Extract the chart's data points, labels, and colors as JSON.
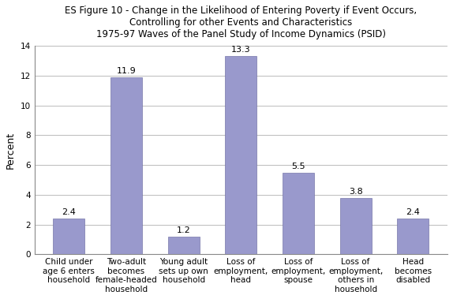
{
  "title_line1": "ES Figure 10 - Change in the Likelihood of Entering Poverty if Event Occurs,",
  "title_line2": "Controlling for other Events and Characteristics",
  "title_line3": "1975-97 Waves of the Panel Study of Income Dynamics (PSID)",
  "categories": [
    "Child under\nage 6 enters\nhousehold",
    "Two-adult\nbecomes\nfemale-headed\nhousehold",
    "Young adult\nsets up own\nhousehold",
    "Loss of\nemployment,\nhead",
    "Loss of\nemployment,\nspouse",
    "Loss of\nemployment,\nothers in\nhousehold",
    "Head\nbecomes\ndisabled"
  ],
  "values": [
    2.4,
    11.9,
    1.2,
    13.3,
    5.5,
    3.8,
    2.4
  ],
  "value_labels": [
    "2.4",
    "11.9",
    "1.2",
    "13.3",
    "5.5",
    "3.8",
    "2.4"
  ],
  "bar_color": "#9999CC",
  "bar_edge_color": "#7777AA",
  "ylabel": "Percent",
  "ylim": [
    0,
    14
  ],
  "yticks": [
    0,
    2,
    4,
    6,
    8,
    10,
    12,
    14
  ],
  "background_color": "#ffffff",
  "title_fontsize": 8.5,
  "bar_label_fontsize": 8,
  "tick_label_fontsize": 7.5,
  "ylabel_fontsize": 9,
  "grid_color": "#bbbbbb",
  "spine_color": "#888888"
}
